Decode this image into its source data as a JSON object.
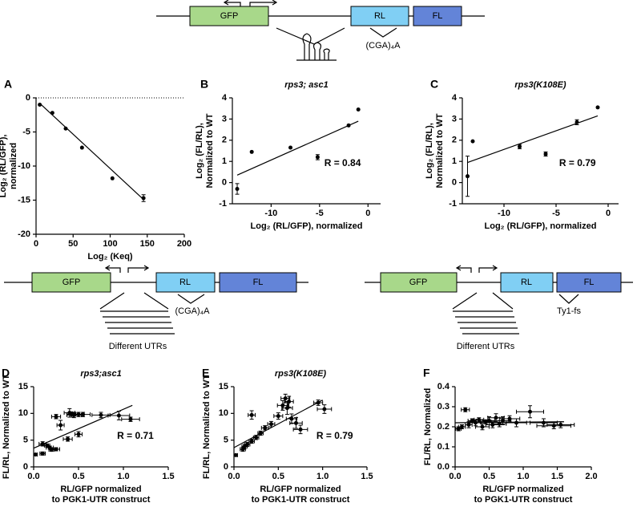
{
  "diagrams": [
    {
      "labels": [
        "GFP",
        "RL",
        "FL",
        "(CGA)₄A"
      ]
    },
    {
      "labels": [
        "GFP",
        "RL",
        "FL",
        "(CGA)₄A",
        "Different UTRs"
      ]
    },
    {
      "labels": [
        "GFP",
        "RL",
        "FL",
        "Ty1-fs",
        "Different UTRs"
      ]
    }
  ],
  "chart_data": [
    {
      "type": "scatter",
      "panel": "A",
      "xlabel": [
        "Log₂ (Keq)"
      ],
      "ylabel": [
        "Log₂ (RL/GFP),",
        "normalized"
      ],
      "xlim": [
        0,
        200
      ],
      "ylim": [
        -20,
        0
      ],
      "xticks": [
        0,
        50,
        100,
        150,
        200
      ],
      "yticks": [
        0,
        -5,
        -10,
        -15,
        -20
      ],
      "reference_line": 0,
      "x": [
        5,
        22,
        40,
        62,
        103,
        145
      ],
      "y": [
        -1,
        -2.2,
        -4.5,
        -7.3,
        -11.8,
        -14.7
      ],
      "xerr": [
        null,
        null,
        null,
        null,
        null,
        null
      ],
      "yerr": [
        null,
        null,
        null,
        null,
        null,
        0.5
      ],
      "fit": {
        "x": [
          5,
          145
        ],
        "y": [
          -0.8,
          -14.9
        ]
      }
    },
    {
      "type": "scatter",
      "panel": "B",
      "title": "rps3; asc1",
      "xlabel": [
        "Log₂ (RL/GFP), normalized"
      ],
      "ylabel": [
        "Log₂ (FL/RL),",
        "Normalized to WT"
      ],
      "xlim": [
        -14,
        1.3
      ],
      "ylim": [
        -1,
        4
      ],
      "xticks": [
        -10,
        -5,
        0
      ],
      "yticks": [
        -1,
        0,
        1,
        2,
        3,
        4
      ],
      "x": [
        -13.5,
        -12,
        -8,
        -5.2,
        -2,
        -1
      ],
      "y": [
        -0.3,
        1.45,
        1.65,
        1.2,
        2.7,
        3.45
      ],
      "xerr": [
        null,
        null,
        null,
        null,
        null,
        null
      ],
      "yerr": [
        0.25,
        null,
        null,
        0.12,
        null,
        null
      ],
      "fit": {
        "x": [
          -13.5,
          -1
        ],
        "y": [
          0.35,
          2.9
        ]
      },
      "annotation": "R = 0.84"
    },
    {
      "type": "scatter",
      "panel": "C",
      "title": "rps3(K108E)",
      "xlabel": [
        "Log₂ (RL/GFP), normalized"
      ],
      "ylabel": [
        "Log₂ (FL/RL),",
        "Normalized to WT"
      ],
      "xlim": [
        -14,
        1
      ],
      "ylim": [
        -1,
        4
      ],
      "xticks": [
        -10,
        -5,
        0
      ],
      "yticks": [
        -1,
        0,
        1,
        2,
        3,
        4
      ],
      "x": [
        -13.5,
        -13,
        -8.5,
        -6,
        -3,
        -1
      ],
      "y": [
        0.3,
        1.95,
        1.7,
        1.35,
        2.85,
        3.55
      ],
      "xerr": [
        null,
        null,
        null,
        null,
        null,
        null
      ],
      "yerr": [
        0.95,
        null,
        0.1,
        0.1,
        0.12,
        null
      ],
      "fit": {
        "x": [
          -13.5,
          -1
        ],
        "y": [
          0.95,
          3.15
        ]
      },
      "annotation": "R = 0.79"
    },
    {
      "type": "scatter",
      "panel": "D",
      "title": "rps3;asc1",
      "xlabel": [
        "RL/GFP normalized",
        "to PGK1-UTR construct"
      ],
      "ylabel": [
        "FL/RL, Normalized to WT"
      ],
      "xlim": [
        0,
        1.5
      ],
      "ylim": [
        0,
        15
      ],
      "xticks": [
        {
          "value": 0,
          "label": "0.0"
        },
        0.5,
        {
          "value": 1,
          "label": "1.0"
        },
        1.5
      ],
      "yticks": [
        0,
        5,
        10,
        15
      ],
      "x": [
        0.02,
        0.1,
        0.1,
        0.15,
        0.18,
        0.2,
        0.25,
        0.25,
        0.3,
        0.38,
        0.4,
        0.42,
        0.45,
        0.5,
        0.5,
        0.55,
        0.75,
        0.95,
        1.08
      ],
      "y": [
        2.3,
        2.5,
        4.3,
        4,
        3.6,
        3.2,
        3.3,
        9.4,
        7.8,
        5.2,
        10.1,
        9.8,
        9.7,
        9.8,
        6.1,
        9.8,
        9.7,
        9.6,
        8.9
      ],
      "xerr": [
        0.02,
        0.03,
        0.04,
        0.03,
        0.04,
        0.03,
        0.04,
        0.05,
        0.04,
        0.05,
        0.06,
        0.05,
        0.08,
        0.06,
        0.04,
        0.08,
        0.1,
        0.12,
        0.1
      ],
      "yerr": [
        0.2,
        0.3,
        0.4,
        0.3,
        0.3,
        0.3,
        0.3,
        0.4,
        0.9,
        0.4,
        0.8,
        0.5,
        0.5,
        0.4,
        0.5,
        0.4,
        0.5,
        0.8,
        0.4
      ],
      "fit": {
        "x": [
          0,
          1.1
        ],
        "y": [
          3.5,
          11.5
        ]
      },
      "annotation": "R = 0.71"
    },
    {
      "type": "scatter",
      "panel": "E",
      "title": "rps3(K108E)",
      "xlabel": [
        "RL/GFP normalized",
        "to PGK1-UTR construct"
      ],
      "ylabel": [
        "FL/RL, Normalized to WT"
      ],
      "xlim": [
        0,
        1.5
      ],
      "ylim": [
        0,
        15
      ],
      "xticks": [
        {
          "value": 0,
          "label": "0.0"
        },
        0.5,
        {
          "value": 1,
          "label": "1.0"
        },
        1.5
      ],
      "yticks": [
        0,
        5,
        10,
        15
      ],
      "x": [
        0.02,
        0.1,
        0.12,
        0.15,
        0.2,
        0.2,
        0.25,
        0.3,
        0.35,
        0.42,
        0.5,
        0.55,
        0.58,
        0.6,
        0.62,
        0.65,
        0.7,
        0.75,
        0.95,
        1.02
      ],
      "y": [
        2.2,
        3.3,
        3.8,
        4.2,
        9.7,
        4.8,
        5.5,
        6.3,
        7.3,
        8,
        9.5,
        11.5,
        12.8,
        11,
        12.2,
        9,
        8.2,
        7,
        12,
        10.8
      ],
      "xerr": [
        0.02,
        0.03,
        0.03,
        0.03,
        0.04,
        0.03,
        0.03,
        0.03,
        0.04,
        0.04,
        0.05,
        0.06,
        0.05,
        0.06,
        0.05,
        0.06,
        0.07,
        0.08,
        0.05,
        0.08
      ],
      "yerr": [
        0.2,
        0.4,
        0.4,
        0.4,
        0.8,
        0.4,
        0.4,
        0.4,
        0.4,
        0.5,
        0.6,
        0.9,
        0.8,
        1.2,
        1,
        0.9,
        1,
        0.8,
        0.5,
        0.8
      ],
      "fit": {
        "x": [
          0,
          1
        ],
        "y": [
          3.6,
          12.5
        ]
      },
      "annotation": "R = 0.79"
    },
    {
      "type": "scatter",
      "panel": "F",
      "xlabel": [
        "RL/GFP normalized",
        "to PGK1-UTR construct"
      ],
      "ylabel": [
        "FL/RL, Normalized"
      ],
      "xlim": [
        0,
        2
      ],
      "ylim": [
        0,
        0.4
      ],
      "xticks": [
        {
          "value": 0,
          "label": "0.0"
        },
        0.5,
        {
          "value": 1,
          "label": "1.0"
        },
        1.5,
        {
          "value": 2,
          "label": "2.0"
        }
      ],
      "yticks": [
        {
          "value": 0,
          "label": "0.0"
        },
        0.1,
        0.2,
        0.3,
        0.4
      ],
      "x": [
        0.05,
        0.1,
        0.15,
        0.2,
        0.25,
        0.3,
        0.35,
        0.4,
        0.45,
        0.5,
        0.55,
        0.6,
        0.65,
        0.7,
        0.8,
        0.9,
        1.1,
        1.3,
        1.45,
        1.55
      ],
      "y": [
        0.19,
        0.2,
        0.285,
        0.21,
        0.23,
        0.22,
        0.235,
        0.2,
        0.225,
        0.23,
        0.21,
        0.245,
        0.215,
        0.23,
        0.24,
        0.22,
        0.275,
        0.22,
        0.205,
        0.21
      ],
      "xerr": [
        0.04,
        0.05,
        0.06,
        0.05,
        0.06,
        0.08,
        0.07,
        0.1,
        0.08,
        0.1,
        0.1,
        0.12,
        0.1,
        0.12,
        0.15,
        0.15,
        0.2,
        0.2,
        0.25,
        0.2
      ],
      "yerr": [
        0.01,
        0.01,
        0.01,
        0.015,
        0.01,
        0.015,
        0.01,
        0.015,
        0.01,
        0.02,
        0.015,
        0.02,
        0.015,
        0.02,
        0.015,
        0.02,
        0.03,
        0.02,
        0.015,
        0.015
      ],
      "fit": {
        "x": [
          0,
          1.6
        ],
        "y": [
          0.22,
          0.225
        ]
      }
    }
  ]
}
